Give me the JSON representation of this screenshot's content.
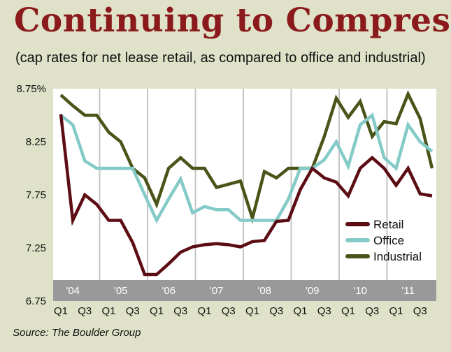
{
  "title": "Continuing to Compress",
  "subtitle": "(cap rates for net lease retail, as compared to office and industrial)",
  "source": "Source: The Boulder Group",
  "colors": {
    "background": "#dfe2c8",
    "title": "#8b1a1c",
    "plot_area": "#ffffff",
    "year_band": "#999999",
    "retail": "#5c0d14",
    "office": "#84cbc8",
    "industrial": "#4a5418"
  },
  "chart_data": {
    "type": "line",
    "title": "Continuing to Compress",
    "ylim": [
      6.75,
      8.75
    ],
    "y_ticks": [
      "8.75%",
      "8.25",
      "7.75",
      "7.25",
      "6.75"
    ],
    "y_tick_values": [
      8.75,
      8.25,
      7.75,
      7.25,
      6.75
    ],
    "year_labels": [
      "'04",
      "'05",
      "'06",
      "'07",
      "'08",
      "'09",
      "'10",
      "'11"
    ],
    "quarter_labels": [
      "Q1",
      "Q3"
    ],
    "x": [
      "2004 Q1",
      "2004 Q2",
      "2004 Q3",
      "2004 Q4",
      "2005 Q1",
      "2005 Q2",
      "2005 Q3",
      "2005 Q4",
      "2006 Q1",
      "2006 Q2",
      "2006 Q3",
      "2006 Q4",
      "2007 Q1",
      "2007 Q2",
      "2007 Q3",
      "2007 Q4",
      "2008 Q1",
      "2008 Q2",
      "2008 Q3",
      "2008 Q4",
      "2009 Q1",
      "2009 Q2",
      "2009 Q3",
      "2009 Q4",
      "2010 Q1",
      "2010 Q2",
      "2010 Q3",
      "2010 Q4",
      "2011 Q1",
      "2011 Q2",
      "2011 Q3",
      "2011 Q4"
    ],
    "grid": "vertical year lines",
    "legend_position": "bottom-right",
    "series": [
      {
        "name": "Retail",
        "color": "#5c0d14",
        "values": [
          8.51,
          7.51,
          7.75,
          7.66,
          7.51,
          7.51,
          7.3,
          7.0,
          7.0,
          7.1,
          7.21,
          7.26,
          7.28,
          7.29,
          7.28,
          7.26,
          7.31,
          7.32,
          7.5,
          7.51,
          7.8,
          8.0,
          7.91,
          7.87,
          7.74,
          8.0,
          8.1,
          8.0,
          7.84,
          8.0,
          7.76,
          7.74
        ]
      },
      {
        "name": "Office",
        "color": "#84cbc8",
        "values": [
          8.5,
          8.41,
          8.07,
          8.0,
          8.0,
          8.0,
          8.0,
          7.75,
          7.51,
          7.71,
          7.9,
          7.58,
          7.64,
          7.61,
          7.61,
          7.51,
          7.51,
          7.51,
          7.51,
          7.71,
          8.0,
          8.0,
          8.08,
          8.25,
          8.02,
          8.41,
          8.5,
          8.1,
          8.0,
          8.41,
          8.25,
          8.16
        ]
      },
      {
        "name": "Industrial",
        "color": "#4a5418",
        "values": [
          8.69,
          8.59,
          8.5,
          8.5,
          8.34,
          8.25,
          8.0,
          7.91,
          7.66,
          8.0,
          8.1,
          8.0,
          8.0,
          7.82,
          7.85,
          7.88,
          7.53,
          7.97,
          7.91,
          8.0,
          8.0,
          8.0,
          8.3,
          8.66,
          8.48,
          8.63,
          8.3,
          8.44,
          8.42,
          8.7,
          8.47,
          8.0
        ]
      }
    ]
  }
}
